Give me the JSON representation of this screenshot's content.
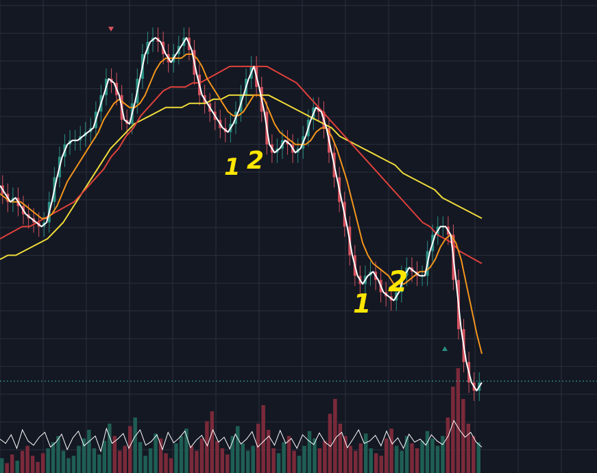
{
  "colors": {
    "background": "#141823",
    "grid": "#2a2f3c",
    "up_candle": "#2b8f83",
    "down_candle": "#d5535f",
    "price_line": "#ffffff",
    "ma_fast": "#f5961c",
    "ma_mid": "#e0413b",
    "ma_slow": "#f0dc3a",
    "annotation": "#ffe600",
    "last_price_line": "#35b8a8",
    "vol_up": "#1f5e54",
    "vol_down": "#7a2a3a",
    "oscillator": "#ffffff"
  },
  "annotations": [
    {
      "text": "1",
      "name": "wave-label-1-first"
    },
    {
      "text": "2",
      "name": "wave-label-2-first"
    },
    {
      "text": "1",
      "name": "wave-label-1-second"
    },
    {
      "text": "2",
      "name": "wave-label-2-second"
    }
  ],
  "chart_data": {
    "type": "candlestick",
    "grid": true,
    "series": [
      {
        "role": "price",
        "values": [
          48,
          46,
          44,
          45,
          43,
          41,
          40,
          39,
          38,
          39,
          44,
          50,
          55,
          58,
          59,
          59,
          60,
          61,
          62,
          66,
          70,
          74,
          73,
          70,
          64,
          63,
          68,
          74,
          80,
          83,
          84,
          83,
          80,
          78,
          80,
          82,
          84,
          81,
          75,
          70,
          68,
          66,
          64,
          62,
          61,
          63,
          66,
          70,
          74,
          77,
          72,
          66,
          58,
          56,
          57,
          59,
          58,
          56,
          57,
          60,
          64,
          67,
          66,
          62,
          56,
          50,
          44,
          38,
          31,
          26,
          24,
          26,
          27,
          25,
          22,
          21,
          20,
          22,
          26,
          28,
          27,
          26,
          26,
          32,
          36,
          38,
          38,
          36,
          25,
          13,
          5,
          0,
          -2,
          0
        ]
      },
      {
        "role": "ma_fast",
        "values": [
          46,
          45,
          44,
          44,
          44,
          43,
          42,
          41,
          40,
          40,
          41,
          43,
          46,
          49,
          51,
          53,
          55,
          57,
          59,
          61,
          64,
          66,
          68,
          69,
          68,
          67,
          67,
          68,
          70,
          73,
          76,
          78,
          79,
          79,
          79,
          79,
          80,
          80,
          79,
          77,
          74,
          72,
          70,
          68,
          66,
          65,
          65,
          66,
          68,
          70,
          70,
          69,
          66,
          63,
          61,
          60,
          59,
          58,
          58,
          58,
          59,
          61,
          62,
          62,
          60,
          57,
          53,
          49,
          44,
          39,
          34,
          31,
          29,
          28,
          27,
          26,
          24,
          24,
          24,
          25,
          26,
          27,
          27,
          28,
          30,
          33,
          35,
          36,
          34,
          30,
          24,
          18,
          12,
          7
        ]
      },
      {
        "role": "ma_mid",
        "values": [
          35,
          36,
          37,
          38,
          38,
          39,
          40,
          41,
          42,
          43,
          44,
          46,
          48,
          50,
          52,
          55,
          57,
          60,
          62,
          65,
          67,
          69,
          71,
          72,
          72,
          72,
          73,
          73,
          74,
          75,
          76,
          77,
          77,
          77,
          77,
          77,
          77,
          76,
          75,
          74,
          73,
          71,
          69,
          67,
          65,
          63,
          61,
          59,
          57,
          55,
          53,
          51,
          49,
          47,
          45,
          43,
          41,
          39,
          38,
          36,
          35,
          34,
          32,
          31,
          30,
          29
        ]
      },
      {
        "role": "ma_slow",
        "values": [
          30,
          31,
          31,
          32,
          33,
          34,
          35,
          37,
          39,
          42,
          45,
          48,
          51,
          54,
          57,
          59,
          61,
          63,
          64,
          65,
          66,
          67,
          67,
          67,
          68,
          68,
          68,
          69,
          69,
          70,
          70,
          70,
          70,
          70,
          70,
          69,
          68,
          67,
          66,
          65,
          64,
          63,
          62,
          60,
          59,
          58,
          57,
          56,
          55,
          54,
          53,
          51,
          50,
          49,
          48,
          47,
          45,
          44,
          43,
          42,
          41,
          40
        ]
      },
      {
        "role": "oscillator",
        "values": [
          55,
          48,
          62,
          40,
          70,
          52,
          45,
          58,
          66,
          42,
          50,
          63,
          38,
          57,
          68,
          44,
          52,
          60,
          35,
          72,
          48,
          55,
          64,
          40,
          58,
          70,
          45,
          51,
          62,
          38,
          66,
          49,
          57,
          68,
          41,
          53,
          61,
          44,
          70,
          50,
          58,
          39,
          63,
          47,
          55,
          67,
          42,
          51,
          60,
          45,
          69,
          48,
          56,
          40,
          62,
          53,
          46,
          65,
          50,
          43,
          58,
          66,
          41,
          55,
          70,
          48,
          52,
          61,
          44,
          68,
          47,
          57,
          40,
          63,
          50,
          55,
          45,
          62,
          52,
          46,
          60,
          85,
          70,
          58,
          66,
          50,
          42
        ]
      }
    ],
    "volume": [
      12,
      8,
      15,
      10,
      18,
      22,
      14,
      9,
      16,
      20,
      25,
      30,
      18,
      12,
      14,
      22,
      28,
      35,
      20,
      15,
      26,
      40,
      30,
      18,
      22,
      38,
      45,
      25,
      14,
      20,
      32,
      28,
      16,
      12,
      24,
      30,
      36,
      22,
      18,
      28,
      42,
      50,
      26,
      20,
      15,
      30,
      38,
      24,
      18,
      22,
      40,
      55,
      35,
      20,
      16,
      25,
      30,
      18,
      14,
      22,
      34,
      28,
      20,
      26,
      48,
      60,
      40,
      30,
      22,
      18,
      24,
      32,
      20,
      16,
      14,
      28,
      36,
      22,
      18,
      30,
      24,
      20,
      26,
      34,
      28,
      22,
      30,
      45,
      70,
      85,
      60,
      40,
      30,
      25
    ]
  }
}
